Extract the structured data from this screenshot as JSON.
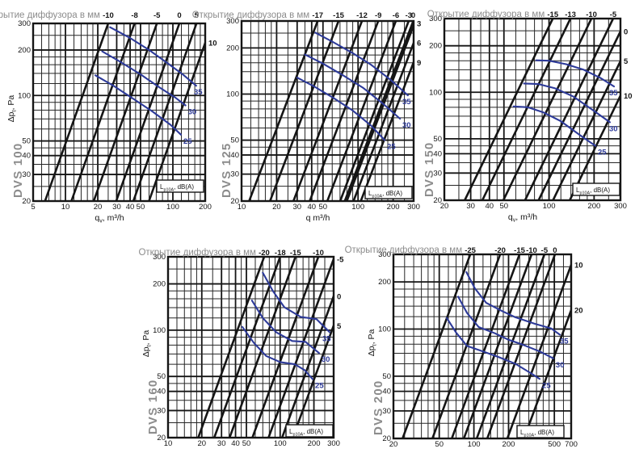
{
  "shared": {
    "opening_title": "Открытие диффузора в мм",
    "noise_box_label": {
      "base": "L",
      "sub": "p10A",
      "rest": ", dB(A)"
    },
    "y_axis_label": {
      "base": "Δp",
      "sub": "t",
      "rest": ", Pa"
    },
    "colors": {
      "black": "#151515",
      "grid_minor": "#262626",
      "curve_blue": "#2d3a99",
      "label_gray": "#8c8c8c",
      "background": "#ffffff"
    }
  },
  "chart_data": [
    {
      "type": "line",
      "model": "DVS 100",
      "title": "Открытие диффузора в мм",
      "xlabel": {
        "base": "q",
        "sub": "v",
        "rest": ", m³/h"
      },
      "show_ylabel": true,
      "xlim": [
        5,
        200
      ],
      "ylim": [
        20,
        300
      ],
      "x_ticks": [
        5,
        10,
        20,
        30,
        40,
        50,
        100,
        200
      ],
      "y_ticks": [
        20,
        30,
        40,
        50,
        100,
        200,
        300
      ],
      "opening_lines_mm": [
        {
          "label": "-10",
          "side": "top",
          "q_top": 25
        },
        {
          "label": "-8",
          "side": "top",
          "q_top": 44
        },
        {
          "label": "-5",
          "side": "top",
          "q_top": 71
        },
        {
          "label": "0",
          "side": "top",
          "q_top": 115
        },
        {
          "label": "5",
          "side": "top",
          "q_top": 166
        },
        {
          "label": "10",
          "side": "right",
          "q_top": 232,
          "p_right": 223
        }
      ],
      "noise_curves_dba": [
        {
          "label": "35",
          "points": [
            [
              26,
              283
            ],
            [
              40,
              240
            ],
            [
              60,
              200
            ],
            [
              90,
              163
            ],
            [
              125,
              137
            ],
            [
              165,
              116
            ]
          ]
        },
        {
          "label": "30",
          "points": [
            [
              22,
              196
            ],
            [
              32,
              168
            ],
            [
              50,
              138
            ],
            [
              75,
              113
            ],
            [
              105,
              97
            ],
            [
              131,
              86
            ]
          ]
        },
        {
          "label": "25",
          "points": [
            [
              19,
              136
            ],
            [
              28,
              116
            ],
            [
              42,
              96
            ],
            [
              65,
              78
            ],
            [
              95,
              64
            ],
            [
              119,
              55
            ]
          ]
        }
      ]
    },
    {
      "type": "line",
      "model": "DVS 125",
      "title": "Открытие диффузора в мм",
      "xlabel": {
        "base": "q",
        "sub": "",
        "rest": "  m³/h"
      },
      "show_ylabel": false,
      "xlim": [
        10,
        300
      ],
      "ylim": [
        20,
        300
      ],
      "x_ticks": [
        10,
        20,
        30,
        40,
        50,
        100,
        200,
        300
      ],
      "y_ticks": [
        20,
        30,
        40,
        50,
        100,
        200,
        300
      ],
      "opening_lines_mm": [
        {
          "label": "-17",
          "side": "top",
          "q_top": 45
        },
        {
          "label": "-15",
          "side": "top",
          "q_top": 68
        },
        {
          "label": "-12",
          "side": "top",
          "q_top": 108
        },
        {
          "label": "-9",
          "side": "top",
          "q_top": 149
        },
        {
          "label": "-6",
          "side": "top",
          "q_top": 211
        },
        {
          "label": "-3",
          "side": "top",
          "q_top": 272
        },
        {
          "label": "0",
          "side": "top",
          "q_top": 298
        },
        {
          "label": "3",
          "side": "right",
          "q_top": 310,
          "p_right": 290
        },
        {
          "label": "6",
          "side": "right",
          "q_top": 354,
          "p_right": 216
        },
        {
          "label": "9",
          "side": "right",
          "q_top": 409,
          "p_right": 161
        }
      ],
      "noise_curves_dba": [
        {
          "label": "35",
          "points": [
            [
              43,
              252
            ],
            [
              60,
              220
            ],
            [
              90,
              185
            ],
            [
              130,
              155
            ],
            [
              190,
              124
            ],
            [
              268,
              98
            ]
          ]
        },
        {
          "label": "30",
          "points": [
            [
              35,
              181
            ],
            [
              50,
              158
            ],
            [
              75,
              132
            ],
            [
              110,
              110
            ],
            [
              165,
              86
            ],
            [
              229,
              69
            ]
          ]
        },
        {
          "label": "25",
          "points": [
            [
              30,
              128
            ],
            [
              42,
              112
            ],
            [
              62,
              94
            ],
            [
              90,
              78
            ],
            [
              130,
              62
            ],
            [
              169,
              50
            ]
          ]
        }
      ]
    },
    {
      "type": "line",
      "model": "DVS 150",
      "title": "Открытие диффузора в мм",
      "xlabel": {
        "base": "q",
        "sub": "v",
        "rest": ", m³/h"
      },
      "show_ylabel": false,
      "xlim": [
        20,
        300
      ],
      "ylim": [
        20,
        300
      ],
      "x_ticks": [
        20,
        30,
        40,
        50,
        100,
        200,
        300
      ],
      "y_ticks": [
        20,
        30,
        40,
        50,
        100,
        200,
        300
      ],
      "opening_lines_mm": [
        {
          "label": "-15",
          "side": "top",
          "q_top": 106
        },
        {
          "label": "-13",
          "side": "top",
          "q_top": 139
        },
        {
          "label": "-10",
          "side": "top",
          "q_top": 192
        },
        {
          "label": "-5",
          "side": "top",
          "q_top": 268
        },
        {
          "label": "0",
          "side": "right",
          "q_top": 330,
          "p_right": 248
        },
        {
          "label": "5",
          "side": "right",
          "q_top": 412,
          "p_right": 159
        },
        {
          "label": "10",
          "side": "right",
          "q_top": 533,
          "p_right": 95
        }
      ],
      "noise_curves_dba": [
        {
          "label": "35",
          "points": [
            [
              82,
              161
            ],
            [
              100,
              160
            ],
            [
              130,
              152
            ],
            [
              170,
              140
            ],
            [
              220,
              124
            ],
            [
              272,
              109
            ]
          ]
        },
        {
          "label": "30",
          "points": [
            [
              68,
              114
            ],
            [
              85,
              113
            ],
            [
              110,
              106
            ],
            [
              145,
              94
            ],
            [
              195,
              77
            ],
            [
              255,
              64
            ]
          ]
        },
        {
          "label": "25",
          "points": [
            [
              58,
              81
            ],
            [
              72,
              80
            ],
            [
              92,
              74
            ],
            [
              120,
              65
            ],
            [
              160,
              53
            ],
            [
              204,
              45
            ]
          ]
        }
      ]
    },
    {
      "type": "line",
      "model": "DVS 160",
      "title": "Открытие диффузора в мм",
      "xlabel": null,
      "show_ylabel": true,
      "xlim": [
        10,
        300
      ],
      "ylim": [
        20,
        300
      ],
      "x_ticks": [
        10,
        20,
        30,
        40,
        50,
        100,
        200,
        300
      ],
      "y_ticks": [
        20,
        30,
        40,
        50,
        100,
        200,
        300
      ],
      "opening_lines_mm": [
        {
          "label": "-20",
          "side": "top",
          "q_top": 72
        },
        {
          "label": "-18",
          "side": "top",
          "q_top": 100
        },
        {
          "label": "-15",
          "side": "top",
          "q_top": 137
        },
        {
          "label": "-10",
          "side": "top",
          "q_top": 219
        },
        {
          "label": "-5",
          "side": "right",
          "q_top": 305,
          "p_right": 290
        },
        {
          "label": "0",
          "side": "right",
          "q_top": 403,
          "p_right": 166
        },
        {
          "label": "5",
          "side": "right",
          "q_top": 502,
          "p_right": 107
        }
      ],
      "noise_curves_dba": [
        {
          "label": "35",
          "points": [
            [
              70,
              236
            ],
            [
              86,
              180
            ],
            [
              109,
              141
            ],
            [
              152,
              122
            ],
            [
              211,
              118
            ],
            [
              276,
              97
            ]
          ]
        },
        {
          "label": "30",
          "points": [
            [
              56,
              156
            ],
            [
              70,
              120
            ],
            [
              92,
              97
            ],
            [
              128,
              85
            ],
            [
              168,
              84
            ],
            [
              222,
              71
            ]
          ]
        },
        {
          "label": "25",
          "points": [
            [
              46,
              105
            ],
            [
              58,
              83
            ],
            [
              75,
              68
            ],
            [
              100,
              62
            ],
            [
              135,
              60
            ],
            [
              165,
              55
            ],
            [
              195,
              48
            ]
          ]
        }
      ]
    },
    {
      "type": "line",
      "model": "DVS 200",
      "title": "Открытие диффузора в мм",
      "xlabel": null,
      "show_ylabel": true,
      "xlim": [
        20,
        700
      ],
      "ylim": [
        20,
        300
      ],
      "x_ticks": [
        20,
        50,
        100,
        200,
        500,
        700
      ],
      "y_ticks": [
        20,
        30,
        40,
        50,
        100,
        200,
        300
      ],
      "opening_lines_mm": [
        {
          "label": "-25",
          "side": "top",
          "q_top": 93
        },
        {
          "label": "-20",
          "side": "top",
          "q_top": 169
        },
        {
          "label": "-15",
          "side": "top",
          "q_top": 249
        },
        {
          "label": "-10",
          "side": "top",
          "q_top": 317
        },
        {
          "label": "-5",
          "side": "top",
          "q_top": 410
        },
        {
          "label": "0",
          "side": "top",
          "q_top": 506
        },
        {
          "label": "10",
          "side": "right",
          "q_top": 756,
          "p_right": 257
        },
        {
          "label": "20",
          "side": "right",
          "q_top": 1055,
          "p_right": 132
        }
      ],
      "noise_curves_dba": [
        {
          "label": "35",
          "points": [
            [
              86,
              231
            ],
            [
              102,
              182
            ],
            [
              128,
              147
            ],
            [
              177,
              130
            ],
            [
              229,
              119
            ],
            [
              339,
              108
            ],
            [
              469,
              101
            ],
            [
              558,
              92
            ]
          ]
        },
        {
          "label": "30",
          "points": [
            [
              73,
              161
            ],
            [
              87,
              127
            ],
            [
              110,
              103
            ],
            [
              152,
              94
            ],
            [
              196,
              86
            ],
            [
              270,
              79
            ],
            [
              373,
              72
            ],
            [
              490,
              65
            ]
          ]
        },
        {
          "label": "25",
          "points": [
            [
              58,
              118
            ],
            [
              70,
              95
            ],
            [
              87,
              78
            ],
            [
              120,
              72
            ],
            [
              166,
              66
            ],
            [
              229,
              60
            ],
            [
              316,
              52
            ],
            [
              373,
              48
            ]
          ]
        }
      ]
    }
  ]
}
